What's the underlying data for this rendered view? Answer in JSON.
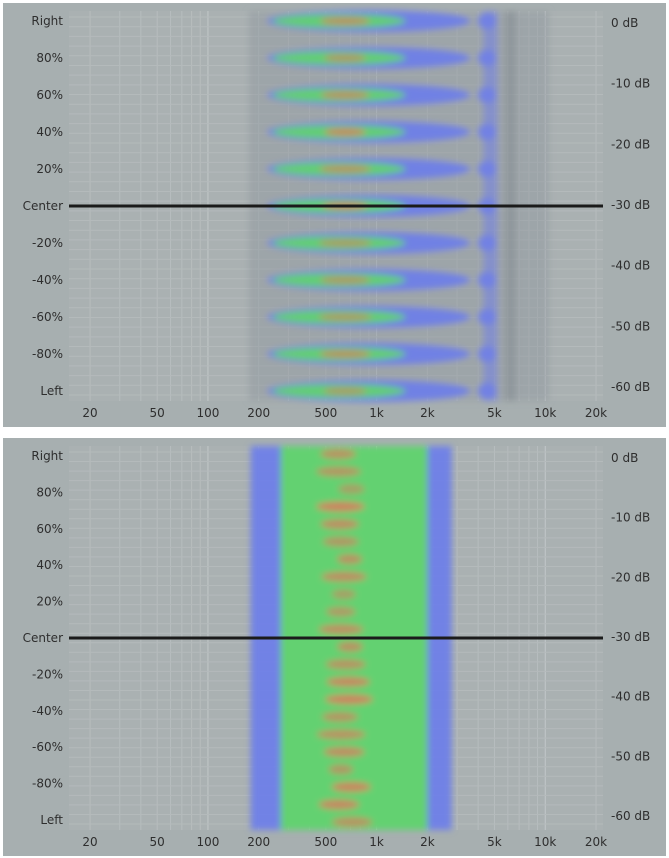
{
  "chart_data": [
    {
      "type": "heatmap",
      "title": "",
      "x_scale": "log",
      "x_ticks": [
        "20",
        "50",
        "100",
        "200",
        "500",
        "1k",
        "2k",
        "5k",
        "10k",
        "20k"
      ],
      "x_tick_values": [
        20,
        50,
        100,
        200,
        500,
        1000,
        2000,
        5000,
        10000,
        20000
      ],
      "y_ticks_left": [
        "Right",
        "80%",
        "60%",
        "40%",
        "20%",
        "Center",
        "-20%",
        "-40%",
        "-60%",
        "-80%",
        "Left"
      ],
      "y_ticks_right": [
        "0 dB",
        "-10 dB",
        "-20 dB",
        "-30 dB",
        "-40 dB",
        "-50 dB",
        "-60 dB"
      ],
      "center_line": 0,
      "energy_range_hz": [
        200,
        7000
      ],
      "colors": {
        "low": "#6f7fe8",
        "mid": "#63d66a",
        "high": "#d97a5f",
        "background": "#a7afb0"
      }
    },
    {
      "type": "heatmap",
      "title": "",
      "x_scale": "log",
      "x_ticks": [
        "20",
        "50",
        "100",
        "200",
        "500",
        "1k",
        "2k",
        "5k",
        "10k",
        "20k"
      ],
      "x_tick_values": [
        20,
        50,
        100,
        200,
        500,
        1000,
        2000,
        5000,
        10000,
        20000
      ],
      "y_ticks_left": [
        "Right",
        "80%",
        "60%",
        "40%",
        "20%",
        "Center",
        "-20%",
        "-40%",
        "-60%",
        "-80%",
        "Left"
      ],
      "y_ticks_right": [
        "0 dB",
        "-10 dB",
        "-20 dB",
        "-30 dB",
        "-40 dB",
        "-50 dB",
        "-60 dB"
      ],
      "center_line": 0,
      "energy_range_hz": [
        200,
        2500
      ],
      "colors": {
        "low": "#6f7fe8",
        "mid": "#63d66a",
        "high": "#d97a5f",
        "background": "#a7afb0"
      }
    }
  ]
}
